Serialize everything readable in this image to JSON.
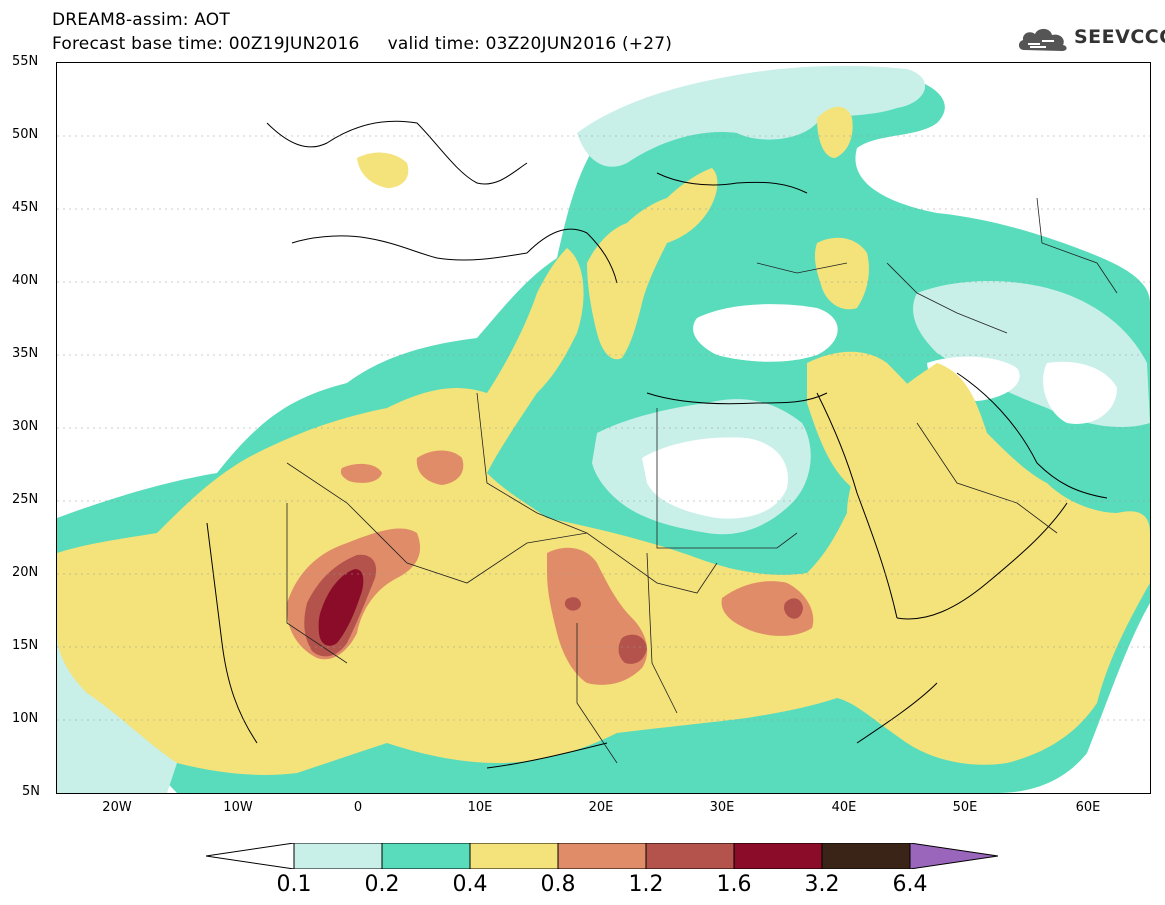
{
  "header": {
    "line1": "DREAM8-assim: AOT",
    "line2": "Forecast base time: 00Z19JUN2016     valid time: 03Z20JUN2016 (+27)"
  },
  "logo": {
    "text": "SEEVCCC",
    "icon": "cloud-icon"
  },
  "axes": {
    "lat_labels": [
      "55N",
      "50N",
      "45N",
      "40N",
      "35N",
      "30N",
      "25N",
      "20N",
      "15N",
      "10N",
      "5N"
    ],
    "lon_labels": [
      "20W",
      "10W",
      "0",
      "10E",
      "20E",
      "30E",
      "40E",
      "50E",
      "60E"
    ],
    "lat_range": [
      5,
      55
    ],
    "lon_range": [
      -25,
      65
    ]
  },
  "colorbar": {
    "labels": [
      "0.1",
      "0.2",
      "0.4",
      "0.8",
      "1.2",
      "1.6",
      "3.2",
      "6.4"
    ],
    "colors": [
      "#ffffff",
      "#c8f0e8",
      "#58dcbc",
      "#f4e27a",
      "#e08c68",
      "#b4524c",
      "#8a0c28",
      "#3a2418",
      "#9966bb"
    ]
  },
  "map_colors": {
    "very_low": "#c8f0e8",
    "low": "#58dcbc",
    "medium": "#f4e27a",
    "high": "#e08c68",
    "higher": "#b4524c",
    "very_high": "#8a0c28"
  }
}
